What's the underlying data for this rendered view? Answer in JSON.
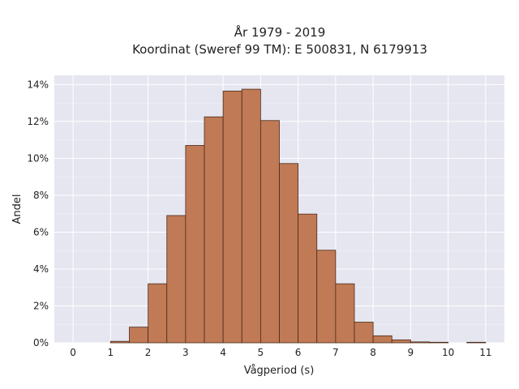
{
  "chart_data": {
    "type": "bar",
    "title_lines": [
      "År 1979 - 2019",
      "Koordinat (Sweref 99 TM): E 500831, N 6179913"
    ],
    "xlabel": "Vågperiod (s)",
    "ylabel": "Andel",
    "xlim": [
      -0.5,
      11.5
    ],
    "ylim": [
      0,
      0.145
    ],
    "x_ticks": [
      0,
      1,
      2,
      3,
      4,
      5,
      6,
      7,
      8,
      9,
      10,
      11
    ],
    "y_ticks": [
      0,
      0.02,
      0.04,
      0.06,
      0.08,
      0.1,
      0.12,
      0.14
    ],
    "y_tick_labels": [
      "0%",
      "2%",
      "4%",
      "6%",
      "8%",
      "10%",
      "12%",
      "14%"
    ],
    "bin_width": 0.5,
    "bins": [
      1.0,
      1.5,
      2.0,
      2.5,
      3.0,
      3.5,
      4.0,
      4.5,
      5.0,
      5.5,
      6.0,
      6.5,
      7.0,
      7.5,
      8.0,
      8.5,
      9.0,
      9.5,
      10.5
    ],
    "values": [
      0.0008,
      0.0085,
      0.032,
      0.069,
      0.107,
      0.1225,
      0.1365,
      0.1375,
      0.1205,
      0.0972,
      0.0698,
      0.0502,
      0.032,
      0.0112,
      0.0038,
      0.0016,
      0.0005,
      0.0003,
      0.0003
    ],
    "colors": {
      "bar_fill": "#c07a55",
      "bar_edge": "#4a2a18",
      "plot_bg": "#e5e6f0",
      "grid": "#ffffff"
    },
    "grid": true
  }
}
